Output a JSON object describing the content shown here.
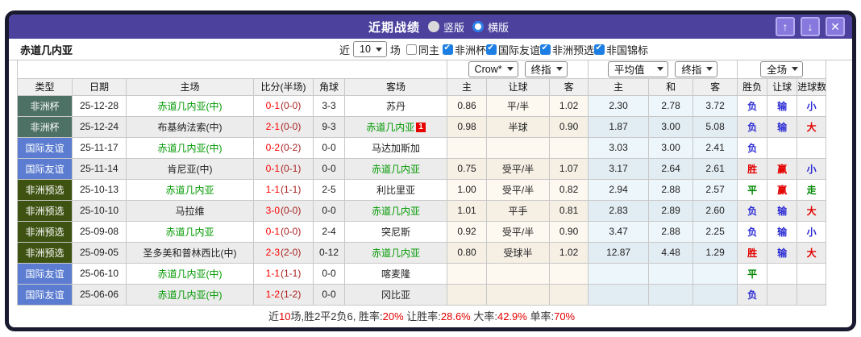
{
  "colors": {
    "frame": "#191930",
    "titlebar_bg": "#4c429e",
    "button_bg": "#8678dd",
    "button_border": "#b7abf2",
    "radio_selected_ring": "#2f7fe8",
    "checkbox_checked": "#1d7fe3",
    "type_africa_cup": "#4e7165",
    "type_friendly": "#5b7cd0",
    "type_africa_qual": "#3e5312",
    "self_team_green": "#009900",
    "score_red": "#ff0000",
    "score_half_red": "#aa2222",
    "result_red": "#e30000",
    "result_blue": "#2b2bd5",
    "result_green": "#008800"
  },
  "titlebar": {
    "title": "近期战绩",
    "radios": [
      {
        "label": "竖版",
        "selected": false
      },
      {
        "label": "横版",
        "selected": true
      }
    ],
    "buttons": {
      "up": "↑",
      "down": "↓",
      "close": "✕"
    }
  },
  "filter": {
    "team": "赤道几内亚",
    "near_label": "近",
    "games_value": "10",
    "games_label": "场",
    "same_home": {
      "label": "同主",
      "checked": false
    },
    "competitions": [
      {
        "key": "africa-cup",
        "label": "非洲杯",
        "checked": true
      },
      {
        "key": "intl-friendly",
        "label": "国际友谊",
        "checked": true
      },
      {
        "key": "africa-qualifier",
        "label": "非洲预选",
        "checked": true
      },
      {
        "key": "africa-nations-champ",
        "label": "非国锦标",
        "checked": true
      }
    ]
  },
  "table": {
    "group_selects": {
      "asia": [
        "Crow*",
        "终指"
      ],
      "europe": [
        "平均值",
        "终指"
      ],
      "result": [
        "全场"
      ]
    },
    "columns": [
      "类型",
      "日期",
      "主场",
      "比分(半场)",
      "角球",
      "客场",
      "主",
      "让球",
      "客",
      "主",
      "和",
      "客",
      "胜负",
      "让球",
      "进球数"
    ],
    "rows": [
      {
        "type": "非洲杯",
        "type_key": "cup",
        "date": "25-12-28",
        "home": "赤道几内亚(中)",
        "home_self": true,
        "score": "0-1",
        "half": "(0-0)",
        "corner": "3-3",
        "away": "苏丹",
        "away_self": false,
        "red_card": "",
        "asia": [
          "0.86",
          "平/半",
          "1.02"
        ],
        "europe": [
          "2.30",
          "2.78",
          "3.72"
        ],
        "result": [
          "负",
          "输",
          "小"
        ]
      },
      {
        "type": "非洲杯",
        "type_key": "cup",
        "date": "25-12-24",
        "home": "布基纳法索(中)",
        "home_self": false,
        "score": "2-1",
        "half": "(0-0)",
        "corner": "9-3",
        "away": "赤道几内亚",
        "away_self": true,
        "red_card": "1",
        "asia": [
          "0.98",
          "半球",
          "0.90"
        ],
        "europe": [
          "1.87",
          "3.00",
          "5.08"
        ],
        "result": [
          "负",
          "输",
          "大"
        ]
      },
      {
        "type": "国际友谊",
        "type_key": "friendly",
        "date": "25-11-17",
        "home": "赤道几内亚(中)",
        "home_self": true,
        "score": "0-2",
        "half": "(0-2)",
        "corner": "0-0",
        "away": "马达加斯加",
        "away_self": false,
        "red_card": "",
        "asia": [
          "",
          "",
          ""
        ],
        "europe": [
          "3.03",
          "3.00",
          "2.41"
        ],
        "result": [
          "负",
          "",
          ""
        ]
      },
      {
        "type": "国际友谊",
        "type_key": "friendly",
        "date": "25-11-14",
        "home": "肯尼亚(中)",
        "home_self": false,
        "score": "0-1",
        "half": "(0-1)",
        "corner": "0-0",
        "away": "赤道几内亚",
        "away_self": true,
        "red_card": "",
        "asia": [
          "0.75",
          "受平/半",
          "1.07"
        ],
        "europe": [
          "3.17",
          "2.64",
          "2.61"
        ],
        "result": [
          "胜",
          "赢",
          "小"
        ]
      },
      {
        "type": "非洲预选",
        "type_key": "qual",
        "date": "25-10-13",
        "home": "赤道几内亚",
        "home_self": true,
        "score": "1-1",
        "half": "(1-1)",
        "corner": "2-5",
        "away": "利比里亚",
        "away_self": false,
        "red_card": "",
        "asia": [
          "1.00",
          "受平/半",
          "0.82"
        ],
        "europe": [
          "2.94",
          "2.88",
          "2.57"
        ],
        "result": [
          "平",
          "赢",
          "走"
        ]
      },
      {
        "type": "非洲预选",
        "type_key": "qual",
        "date": "25-10-10",
        "home": "马拉维",
        "home_self": false,
        "score": "3-0",
        "half": "(0-0)",
        "corner": "0-0",
        "away": "赤道几内亚",
        "away_self": true,
        "red_card": "",
        "asia": [
          "1.01",
          "平手",
          "0.81"
        ],
        "europe": [
          "2.83",
          "2.89",
          "2.60"
        ],
        "result": [
          "负",
          "输",
          "大"
        ]
      },
      {
        "type": "非洲预选",
        "type_key": "qual",
        "date": "25-09-08",
        "home": "赤道几内亚",
        "home_self": true,
        "score": "0-1",
        "half": "(0-0)",
        "corner": "2-4",
        "away": "突尼斯",
        "away_self": false,
        "red_card": "",
        "asia": [
          "0.92",
          "受平/半",
          "0.90"
        ],
        "europe": [
          "3.47",
          "2.88",
          "2.25"
        ],
        "result": [
          "负",
          "输",
          "小"
        ]
      },
      {
        "type": "非洲预选",
        "type_key": "qual",
        "date": "25-09-05",
        "home": "圣多美和普林西比(中)",
        "home_self": false,
        "score": "2-3",
        "half": "(2-0)",
        "corner": "0-12",
        "away": "赤道几内亚",
        "away_self": true,
        "red_card": "",
        "asia": [
          "0.80",
          "受球半",
          "1.02"
        ],
        "europe": [
          "12.87",
          "4.48",
          "1.29"
        ],
        "result": [
          "胜",
          "输",
          "大"
        ]
      },
      {
        "type": "国际友谊",
        "type_key": "friendly",
        "date": "25-06-10",
        "home": "赤道几内亚(中)",
        "home_self": true,
        "score": "1-1",
        "half": "(1-1)",
        "corner": "0-0",
        "away": "喀麦隆",
        "away_self": false,
        "red_card": "",
        "asia": [
          "",
          "",
          ""
        ],
        "europe": [
          "",
          "",
          ""
        ],
        "result": [
          "平",
          "",
          ""
        ]
      },
      {
        "type": "国际友谊",
        "type_key": "friendly",
        "date": "25-06-06",
        "home": "赤道几内亚(中)",
        "home_self": true,
        "score": "1-2",
        "half": "(1-2)",
        "corner": "0-0",
        "away": "冈比亚",
        "away_self": false,
        "red_card": "",
        "asia": [
          "",
          "",
          ""
        ],
        "europe": [
          "",
          "",
          ""
        ],
        "result": [
          "负",
          "",
          ""
        ]
      }
    ]
  },
  "footer": {
    "segments": [
      {
        "text": "近",
        "red": false
      },
      {
        "text": "10",
        "red": true
      },
      {
        "text": "场,胜2平2负6, 胜率:",
        "red": false
      },
      {
        "text": "20%",
        "red": true
      },
      {
        "text": " 让胜率:",
        "red": false
      },
      {
        "text": "28.6%",
        "red": true
      },
      {
        "text": " 大率:",
        "red": false
      },
      {
        "text": "42.9%",
        "red": true
      },
      {
        "text": " 单率:",
        "red": false
      },
      {
        "text": "70%",
        "red": true
      }
    ]
  }
}
